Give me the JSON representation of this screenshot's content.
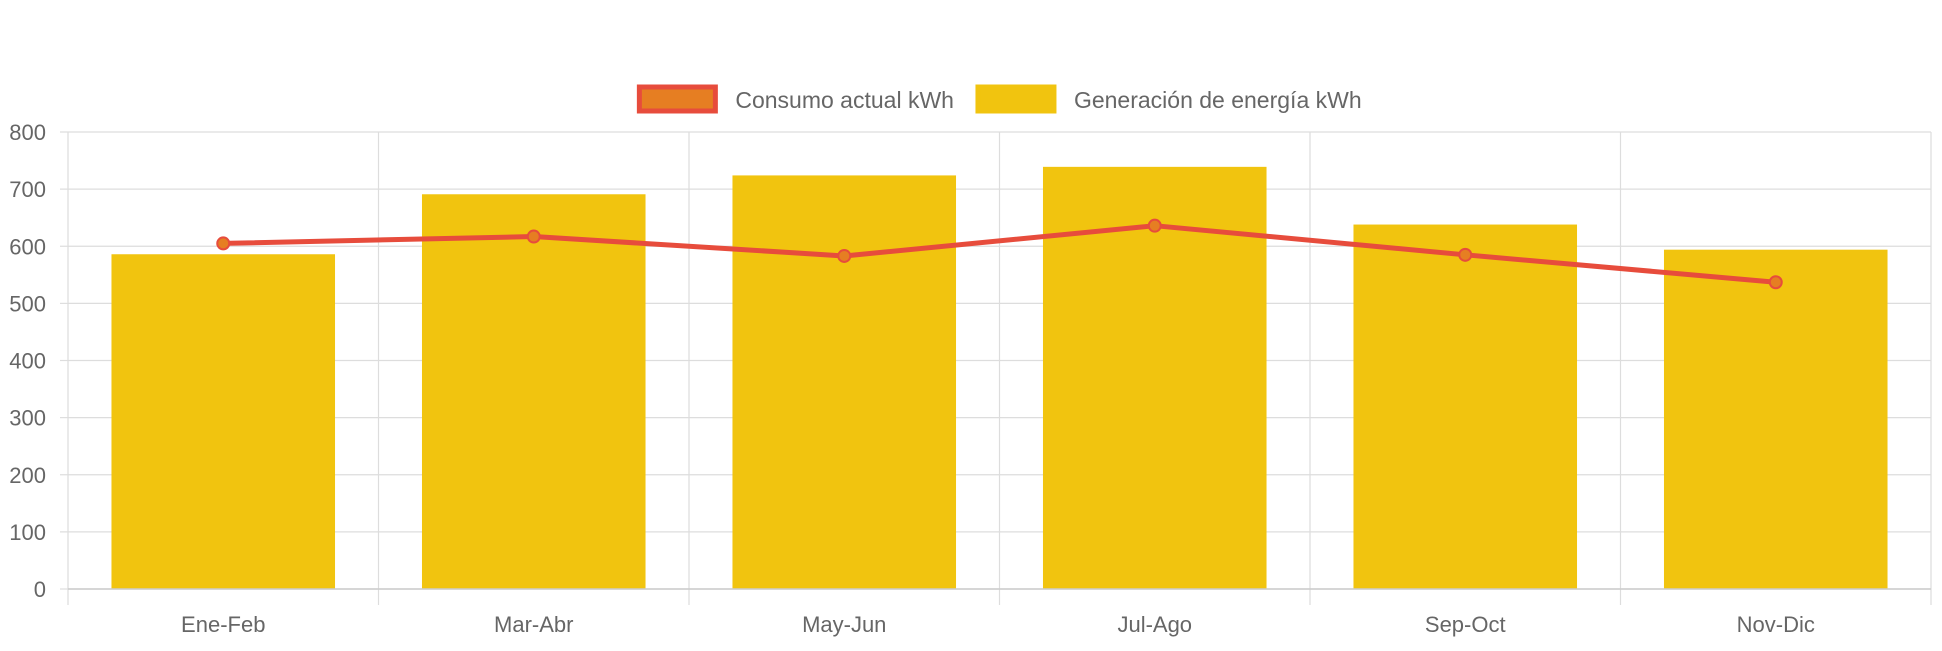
{
  "colors": {
    "line": "#e74c3c",
    "point_fill": "#e67e22",
    "bar": "#f1c40f",
    "grid": "#dddddd",
    "axis_text": "#666666"
  },
  "legend": {
    "items": [
      {
        "label": "Consumo actual kWh",
        "swatch_fill": "#e67e22",
        "swatch_stroke": "#e74c3c",
        "series": "consumo"
      },
      {
        "label": "Generación de energía kWh",
        "swatch_fill": "#f1c40f",
        "swatch_stroke": "#f1c40f",
        "series": "generacion"
      }
    ],
    "position": "top-center"
  },
  "chart_data": {
    "type": "bar",
    "title": "",
    "xlabel": "",
    "ylabel": "",
    "categories": [
      "Ene-Feb",
      "Mar-Abr",
      "May-Jun",
      "Jul-Ago",
      "Sep-Oct",
      "Nov-Dic"
    ],
    "ylim": [
      0,
      800
    ],
    "yticks": [
      0,
      100,
      200,
      300,
      400,
      500,
      600,
      700,
      800
    ],
    "grid": true,
    "series": [
      {
        "name": "Consumo actual kWh",
        "type": "line",
        "values": [
          605,
          617,
          583,
          636,
          585,
          537
        ]
      },
      {
        "name": "Generación de energía kWh",
        "type": "bar",
        "values": [
          586,
          691,
          724,
          739,
          638,
          594
        ]
      }
    ]
  }
}
